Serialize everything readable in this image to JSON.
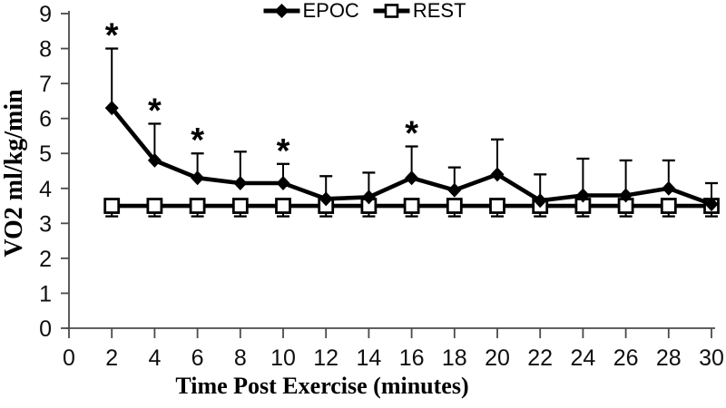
{
  "chart_data": {
    "type": "line",
    "title": "",
    "xlabel": "Time Post Exercise (minutes)",
    "ylabel": "VO2 ml/kg/min",
    "xlim": [
      0,
      30
    ],
    "ylim": [
      0,
      9
    ],
    "xticks": [
      0,
      2,
      4,
      6,
      8,
      10,
      12,
      14,
      16,
      18,
      20,
      22,
      24,
      26,
      28,
      30
    ],
    "yticks": [
      0,
      1,
      2,
      3,
      4,
      5,
      6,
      7,
      8,
      9
    ],
    "x": [
      2,
      4,
      6,
      8,
      10,
      12,
      14,
      16,
      18,
      20,
      22,
      24,
      26,
      28,
      30
    ],
    "grid": false,
    "legend_position": "top-center",
    "line_color": "#000000",
    "series": [
      {
        "name": "EPOC",
        "marker": "filled-diamond",
        "color": "#000000",
        "values": [
          6.3,
          4.8,
          4.3,
          4.15,
          4.15,
          3.7,
          3.75,
          4.3,
          3.95,
          4.4,
          3.65,
          3.8,
          3.8,
          4.0,
          3.55
        ],
        "error_top": [
          8.0,
          5.85,
          5.0,
          5.05,
          4.7,
          4.35,
          4.45,
          5.2,
          4.6,
          5.4,
          4.4,
          4.85,
          4.8,
          4.8,
          4.15
        ]
      },
      {
        "name": "REST",
        "marker": "open-square",
        "color": "#000000",
        "values": [
          3.5,
          3.5,
          3.5,
          3.5,
          3.5,
          3.5,
          3.5,
          3.5,
          3.5,
          3.5,
          3.5,
          3.5,
          3.5,
          3.5,
          3.5
        ],
        "error_bottom": [
          3.2,
          3.2,
          3.2,
          3.2,
          3.2,
          3.2,
          3.2,
          3.2,
          3.2,
          3.2,
          3.2,
          3.2,
          3.2,
          3.2,
          3.2
        ]
      }
    ],
    "significance": {
      "symbol": "*",
      "x_positions": [
        2,
        4,
        6,
        10,
        16
      ]
    }
  }
}
